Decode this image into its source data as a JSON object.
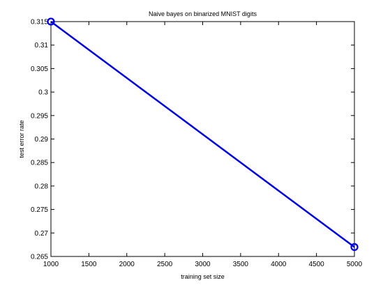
{
  "chart_data": {
    "type": "line",
    "title": "Naive bayes on binarized MNIST digits",
    "xlabel": "training set size",
    "ylabel": "test error rate",
    "x": [
      1000,
      5000
    ],
    "series": [
      {
        "values": [
          0.315,
          0.267
        ],
        "color": "#0000e6",
        "marker": "circle"
      }
    ],
    "xlim": [
      1000,
      5000
    ],
    "ylim": [
      0.265,
      0.315
    ],
    "xticks": [
      "1000",
      "1500",
      "2000",
      "2500",
      "3000",
      "3500",
      "4000",
      "4500",
      "5000"
    ],
    "yticks": [
      "0.265",
      "0.27",
      "0.275",
      "0.28",
      "0.285",
      "0.29",
      "0.295",
      "0.3",
      "0.305",
      "0.31",
      "0.315"
    ],
    "grid": false,
    "legend": "none"
  }
}
